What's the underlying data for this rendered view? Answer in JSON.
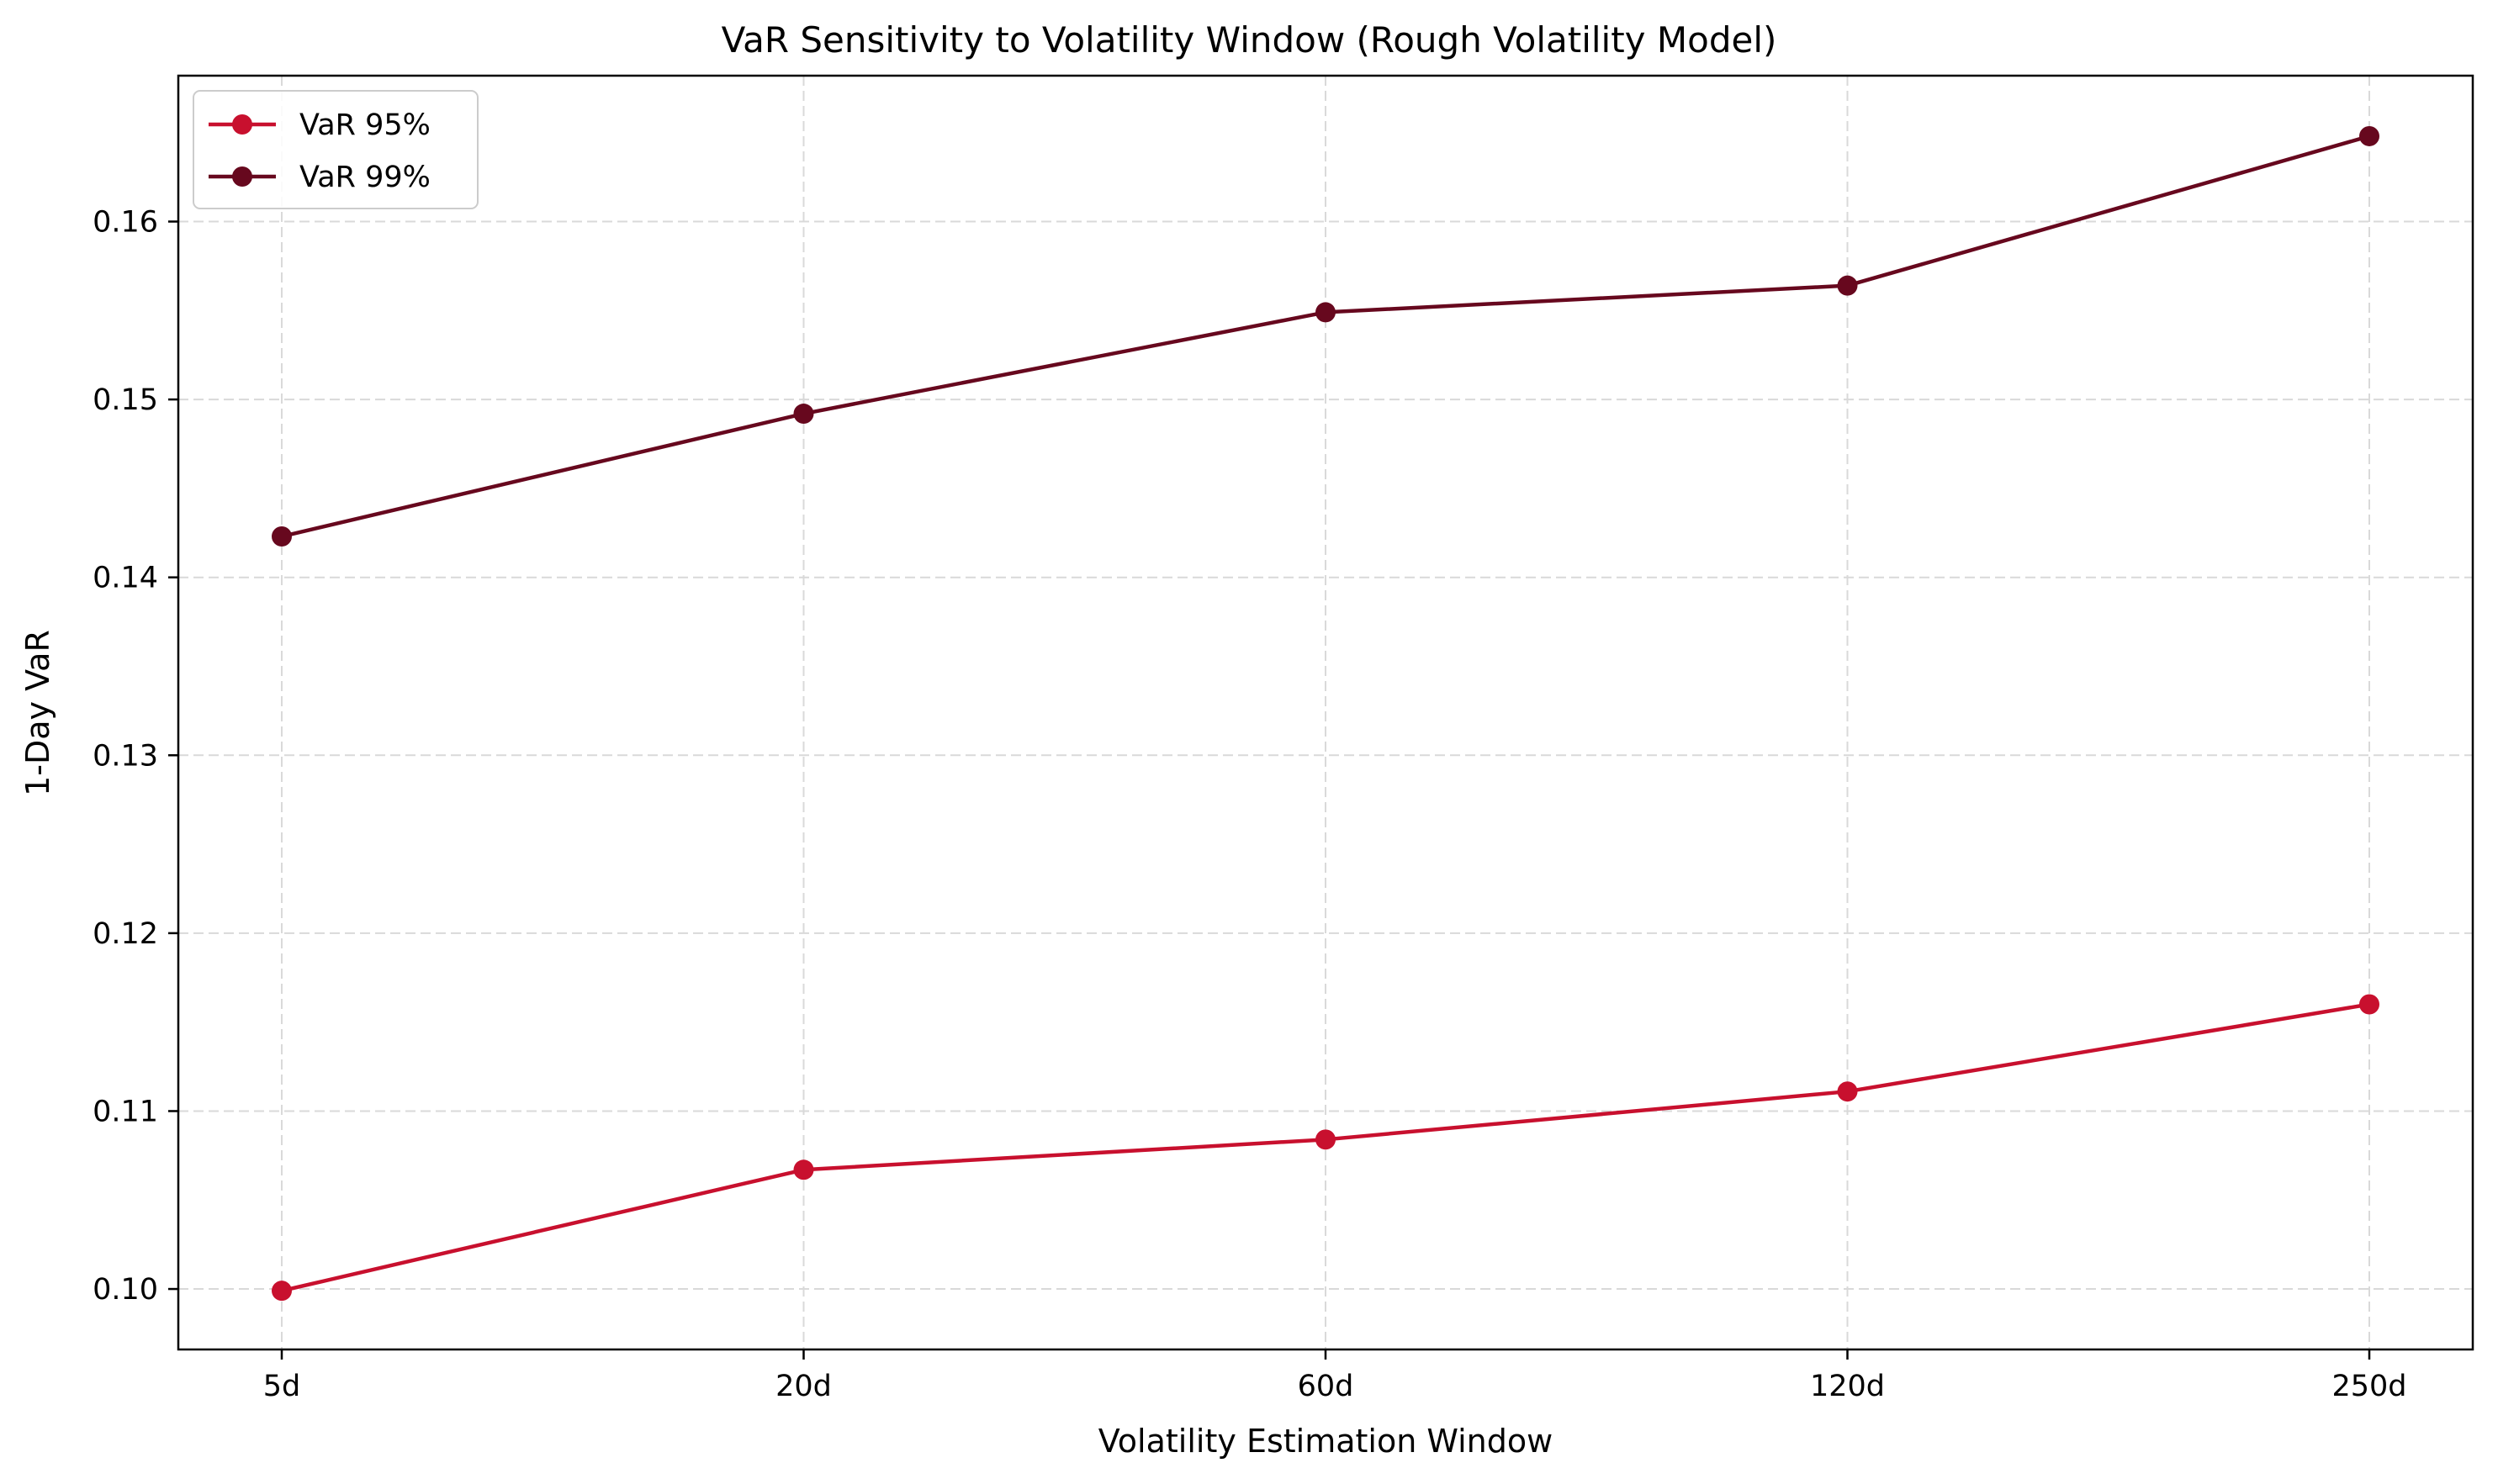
{
  "chart_data": {
    "type": "line",
    "title": "VaR Sensitivity to Volatility Window (Rough Volatility Model)",
    "xlabel": "Volatility Estimation Window",
    "ylabel": "1-Day VaR",
    "categories": [
      "5d",
      "20d",
      "60d",
      "120d",
      "250d"
    ],
    "ylim": [
      0.0966,
      0.1682
    ],
    "yticks": [
      0.1,
      0.11,
      0.12,
      0.13,
      0.14,
      0.15,
      0.16
    ],
    "ytick_labels": [
      "0.10",
      "0.11",
      "0.12",
      "0.13",
      "0.14",
      "0.15",
      "0.16"
    ],
    "grid": true,
    "legend_position": "top-left",
    "series": [
      {
        "name": "VaR 95%",
        "color": "#c8102e",
        "values": [
          0.0999,
          0.1067,
          0.1084,
          0.1111,
          0.116
        ]
      },
      {
        "name": "VaR 99%",
        "color": "#67081e",
        "values": [
          0.1423,
          0.1492,
          0.1549,
          0.1564,
          0.1648
        ]
      }
    ]
  }
}
